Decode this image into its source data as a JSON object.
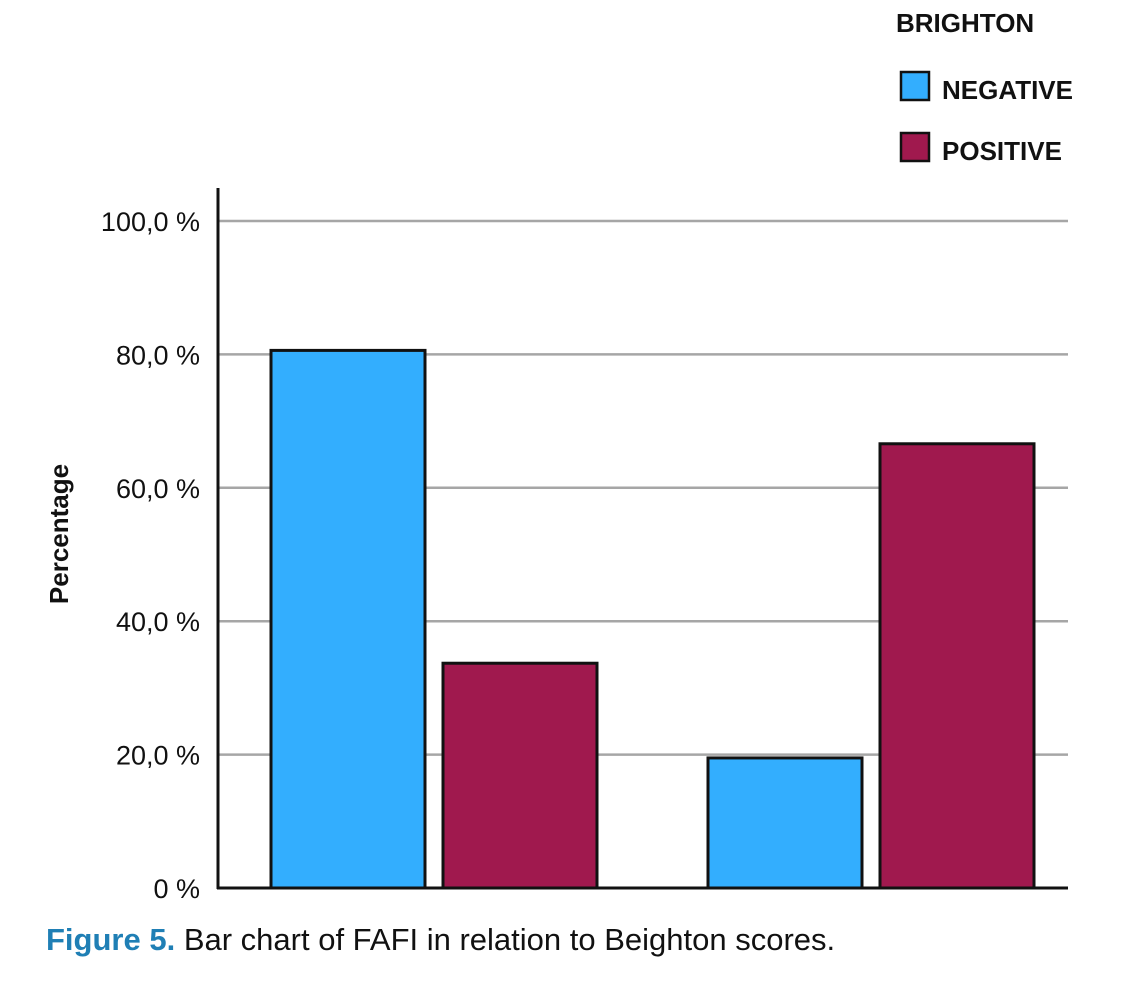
{
  "chart_data": {
    "type": "bar",
    "categories": [
      "",
      ""
    ],
    "series": [
      {
        "name": "NEGATIVE",
        "color": "#33aefe",
        "values": [
          80.6,
          19.5
        ]
      },
      {
        "name": "POSITIVE",
        "color": "#a0194e",
        "values": [
          33.7,
          66.6
        ]
      }
    ],
    "legend_title": "BRIGHTON",
    "legend_position": "top-right",
    "ylabel": "Percentage",
    "xlabel": "",
    "ylim": [
      0,
      100
    ],
    "yticks": [
      "0 %",
      "20,0 %",
      "40,0 %",
      "60,0 %",
      "80,0 %",
      "100,0 %"
    ],
    "ytick_values": [
      0,
      20,
      40,
      60,
      80,
      100
    ],
    "grid": true
  },
  "caption": {
    "label": "Figure 5.",
    "text": " Bar chart of FAFI in relation to Beighton scores."
  }
}
